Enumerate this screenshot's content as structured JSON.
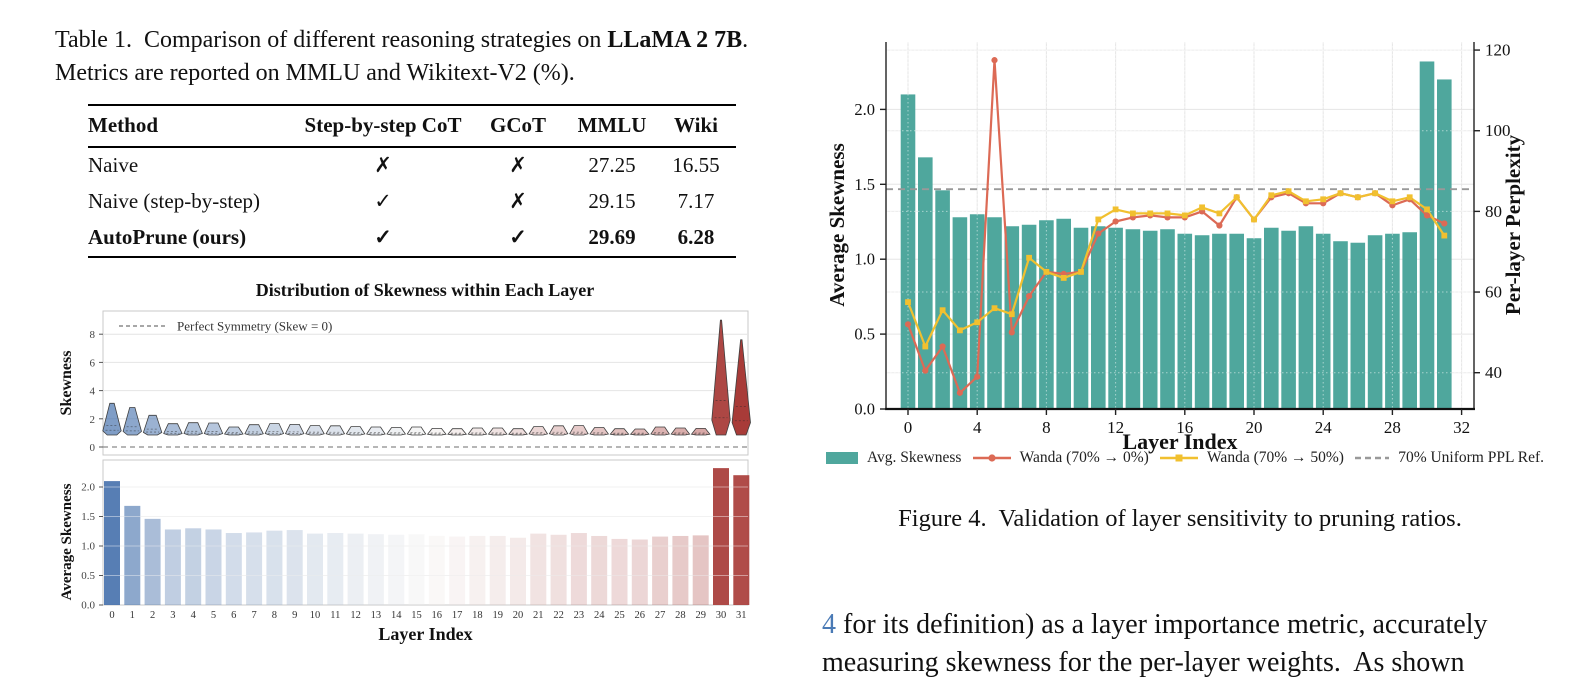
{
  "colors": {
    "teal": "#4fa79d",
    "orange": "#dc6a55",
    "yellow": "#f1c02f",
    "ref_gray": "#999999",
    "link_blue": "#4a7ab5",
    "coolwarm_blue": "#3b69a8",
    "coolwarm_mid": "#f2f0ee",
    "coolwarm_red": "#a83b38"
  },
  "table1": {
    "caption": {
      "part1": "Table 1.  Comparison of different reasoning strategies on ",
      "bold1": "LLaMA 2 7B",
      "part2": ". Metrics are reported on MMLU and Wikitext-V2 (%)."
    },
    "headers": [
      "Method",
      "Step-by-step CoT",
      "GCoT",
      "MMLU",
      "Wiki"
    ],
    "rows": [
      {
        "cells": [
          "Naive",
          "✗",
          "✗",
          "27.25",
          "16.55"
        ],
        "bold": false
      },
      {
        "cells": [
          "Naive (step-by-step)",
          "✓",
          "✗",
          "29.15",
          "7.17"
        ],
        "bold": false
      },
      {
        "cells": [
          "AutoPrune (ours)",
          "✓",
          "✓",
          "29.69",
          "6.28"
        ],
        "bold": true
      }
    ]
  },
  "figure4": {
    "caption": "Figure 4.  Validation of layer sensitivity to pruning ratios."
  },
  "body_text": {
    "line1_link": "4",
    "line1_rest": " for its definition) as a layer importance metric, accurately",
    "line2": "measuring skewness for the per-layer weights.  As shown"
  },
  "chart_data": [
    {
      "id": "skewness_violin",
      "type": "violin",
      "title": "Distribution of Skewness within Each Layer",
      "ylabel": "Skewness",
      "yticks": [
        0,
        2,
        4,
        6,
        8
      ],
      "ylim": [
        -0.6,
        9.6
      ],
      "legend_label": "Perfect Symmetry (Skew = 0)",
      "ref_line_y": 0,
      "categories": [
        0,
        1,
        2,
        3,
        4,
        5,
        6,
        7,
        8,
        9,
        10,
        11,
        12,
        13,
        14,
        15,
        16,
        17,
        18,
        19,
        20,
        21,
        22,
        23,
        24,
        25,
        26,
        27,
        28,
        29,
        30,
        31
      ],
      "violin_min": 0.85,
      "violin_max": [
        3.1,
        2.8,
        2.25,
        1.65,
        1.72,
        1.7,
        1.42,
        1.58,
        1.66,
        1.6,
        1.52,
        1.5,
        1.45,
        1.42,
        1.38,
        1.42,
        1.32,
        1.3,
        1.35,
        1.35,
        1.3,
        1.45,
        1.5,
        1.52,
        1.38,
        1.3,
        1.28,
        1.42,
        1.35,
        1.32,
        9.0,
        7.6
      ]
    },
    {
      "id": "avg_skewness_bars",
      "type": "bar",
      "xlabel": "Layer Index",
      "ylabel": "Average Skewness",
      "yticks": [
        0.0,
        0.5,
        1.0,
        1.5,
        2.0
      ],
      "ylim": [
        0,
        2.45
      ],
      "colormap": "coolwarm",
      "categories": [
        0,
        1,
        2,
        3,
        4,
        5,
        6,
        7,
        8,
        9,
        10,
        11,
        12,
        13,
        14,
        15,
        16,
        17,
        18,
        19,
        20,
        21,
        22,
        23,
        24,
        25,
        26,
        27,
        28,
        29,
        30,
        31
      ],
      "values": [
        2.1,
        1.68,
        1.46,
        1.28,
        1.3,
        1.28,
        1.22,
        1.23,
        1.26,
        1.27,
        1.21,
        1.22,
        1.21,
        1.2,
        1.19,
        1.2,
        1.17,
        1.16,
        1.17,
        1.17,
        1.14,
        1.21,
        1.19,
        1.22,
        1.17,
        1.12,
        1.11,
        1.16,
        1.17,
        1.18,
        2.32,
        2.2
      ]
    },
    {
      "id": "figure4_combo",
      "type": "bar+line",
      "xlabel": "Layer Index",
      "ylabel_left": "Average Skewness",
      "ylabel_right": "Per-layer Perplexity",
      "xticks": [
        0,
        4,
        8,
        12,
        16,
        20,
        24,
        28,
        32
      ],
      "yticks_left": [
        0.0,
        0.5,
        1.0,
        1.5,
        2.0
      ],
      "yticks_right": [
        40,
        60,
        80,
        100,
        120
      ],
      "ylim_left": [
        0,
        2.45
      ],
      "ylim_right": [
        31,
        122
      ],
      "grid": true,
      "legend_position": "below",
      "categories": [
        0,
        1,
        2,
        3,
        4,
        5,
        6,
        7,
        8,
        9,
        10,
        11,
        12,
        13,
        14,
        15,
        16,
        17,
        18,
        19,
        20,
        21,
        22,
        23,
        24,
        25,
        26,
        27,
        28,
        29,
        30,
        31
      ],
      "bars": {
        "name": "Avg. Skewness",
        "axis": "left",
        "color": "#4fa79d",
        "values": [
          2.1,
          1.68,
          1.46,
          1.28,
          1.3,
          1.28,
          1.22,
          1.23,
          1.26,
          1.27,
          1.21,
          1.22,
          1.21,
          1.2,
          1.19,
          1.2,
          1.17,
          1.16,
          1.17,
          1.17,
          1.14,
          1.21,
          1.19,
          1.22,
          1.17,
          1.12,
          1.11,
          1.16,
          1.17,
          1.18,
          2.32,
          2.2
        ]
      },
      "series": [
        {
          "name": "Wanda (70% → 0%)",
          "axis": "right",
          "color": "#dc6a55",
          "marker": "circle",
          "values": [
            52,
            40.5,
            46.5,
            35,
            39,
            117.5,
            50,
            59,
            65,
            64.5,
            65,
            74.5,
            77.5,
            78.5,
            79,
            78.5,
            78.5,
            80,
            76.5,
            83.5,
            78,
            83.5,
            84.5,
            82,
            82,
            84.5,
            83.5,
            84.5,
            81.5,
            83,
            79,
            77
          ]
        },
        {
          "name": "Wanda (70% → 50%)",
          "axis": "right",
          "color": "#f1c02f",
          "marker": "square",
          "values": [
            57.5,
            46.5,
            55.5,
            50.5,
            52.5,
            56,
            54.5,
            68.5,
            65,
            63.5,
            65,
            78,
            80.5,
            79.5,
            79.5,
            79.5,
            79,
            81,
            79.5,
            83.5,
            78,
            84,
            85,
            82.5,
            83,
            84.5,
            83.5,
            84.5,
            82.5,
            83.5,
            80.5,
            74
          ]
        }
      ],
      "ref_line": {
        "name": "70% Uniform PPL Ref.",
        "axis": "right",
        "value": 85.5,
        "color": "#999999",
        "style": "dashed"
      }
    }
  ]
}
